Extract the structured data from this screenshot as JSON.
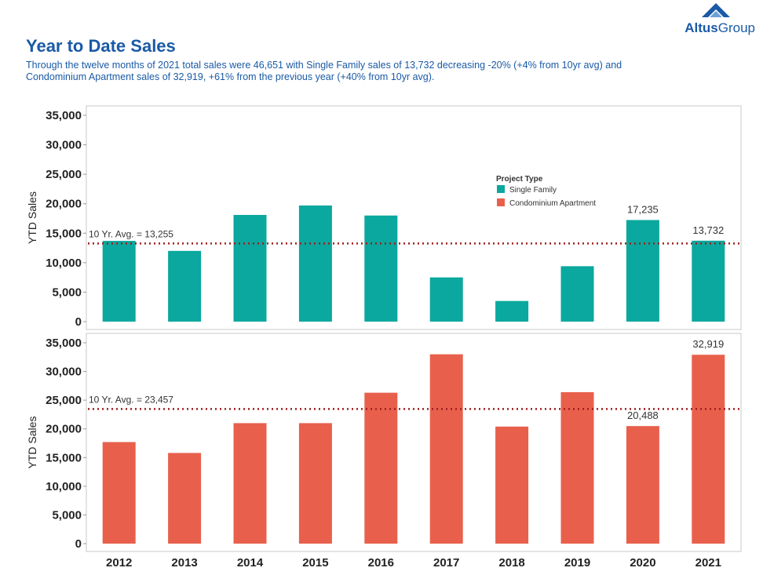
{
  "brand": {
    "name_bold": "Altus",
    "name_regular": "Group",
    "color": "#1a5aa6"
  },
  "header": {
    "title": "Year to Date Sales",
    "subtitle": "Through the twelve months of 2021 total sales were 46,651 with Single Family sales of 13,732 decreasing -20% (+4% from 10yr avg) and Condominium Apartment sales of 32,919, +61% from the previous year (+40% from 10yr avg)."
  },
  "colors": {
    "single_family": "#0aa89e",
    "condo": "#e8604c",
    "avg_line": "#a01c1c"
  },
  "chart_data": {
    "type": "bar",
    "categories": [
      "2012",
      "2013",
      "2014",
      "2015",
      "2016",
      "2017",
      "2018",
      "2019",
      "2020",
      "2021"
    ],
    "legend": {
      "title": "Project Type",
      "position": "upper-right of top panel",
      "items": [
        "Single Family",
        "Condominium Apartment"
      ]
    },
    "panels": [
      {
        "series_name": "Single Family",
        "ylabel": "YTD Sales",
        "ylim": [
          0,
          35000
        ],
        "yticks": [
          "0",
          "5,000",
          "10,000",
          "15,000",
          "20,000",
          "25,000",
          "30,000",
          "35,000"
        ],
        "values": [
          13700,
          12000,
          18100,
          19700,
          18000,
          7500,
          3500,
          9400,
          17235,
          13732
        ],
        "data_labels": {
          "2020": "17,235",
          "2021": "13,732"
        },
        "avg_value": 13255,
        "avg_label": "10 Yr. Avg. = 13,255"
      },
      {
        "series_name": "Condominium Apartment",
        "ylabel": "YTD Sales",
        "ylim": [
          0,
          35000
        ],
        "yticks": [
          "0",
          "5,000",
          "10,000",
          "15,000",
          "20,000",
          "25,000",
          "30,000",
          "35,000"
        ],
        "values": [
          17700,
          15800,
          21000,
          21000,
          26300,
          33000,
          20400,
          26400,
          20488,
          32919
        ],
        "data_labels": {
          "2020": "20,488",
          "2021": "32,919"
        },
        "avg_value": 23457,
        "avg_label": "10 Yr. Avg. = 23,457"
      }
    ]
  }
}
